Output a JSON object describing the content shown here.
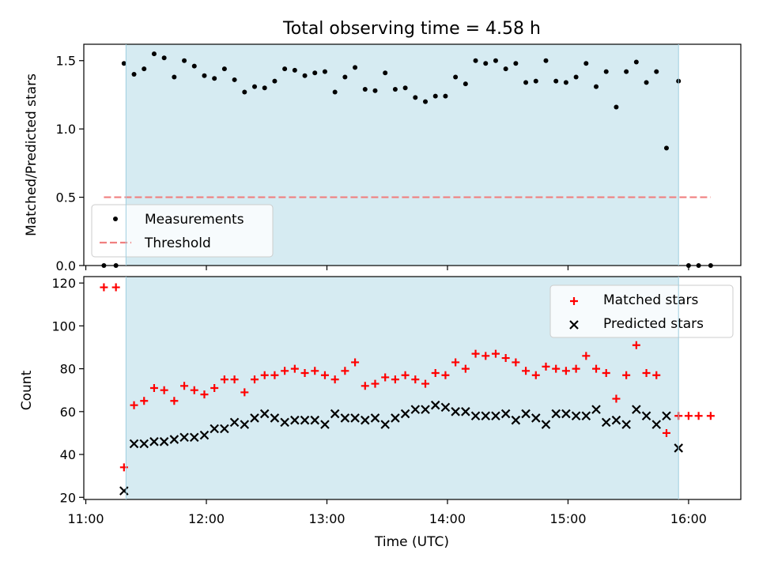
{
  "chart_data": [
    {
      "type": "scatter",
      "title": "Total observing time = 4.58 h",
      "ylabel": "Matched/Predicted stars",
      "xlabel": "",
      "ylim": [
        0,
        1.62
      ],
      "yticks": [
        "0.0",
        "0.5",
        "1.0",
        "1.5"
      ],
      "shaded_region": {
        "start": "11:20",
        "end": "15:55"
      },
      "series": [
        {
          "name": "Measurements",
          "marker": "dot",
          "color": "#000000",
          "x": [
            "11:09",
            "11:15",
            "11:19",
            "11:24",
            "11:29",
            "11:34",
            "11:39",
            "11:44",
            "11:49",
            "11:54",
            "11:59",
            "12:04",
            "12:09",
            "12:14",
            "12:19",
            "12:24",
            "12:29",
            "12:34",
            "12:39",
            "12:44",
            "12:49",
            "12:54",
            "12:59",
            "13:04",
            "13:09",
            "13:14",
            "13:19",
            "13:24",
            "13:29",
            "13:34",
            "13:39",
            "13:44",
            "13:49",
            "13:54",
            "13:59",
            "14:04",
            "14:09",
            "14:14",
            "14:19",
            "14:24",
            "14:29",
            "14:34",
            "14:39",
            "14:44",
            "14:49",
            "14:54",
            "14:59",
            "15:04",
            "15:09",
            "15:14",
            "15:19",
            "15:24",
            "15:29",
            "15:34",
            "15:39",
            "15:44",
            "15:49",
            "15:55",
            "16:00",
            "16:05",
            "16:11"
          ],
          "y": [
            0,
            0,
            1.48,
            1.4,
            1.44,
            1.55,
            1.52,
            1.38,
            1.5,
            1.46,
            1.39,
            1.37,
            1.44,
            1.36,
            1.27,
            1.31,
            1.3,
            1.35,
            1.44,
            1.43,
            1.39,
            1.41,
            1.42,
            1.27,
            1.38,
            1.45,
            1.29,
            1.28,
            1.41,
            1.29,
            1.3,
            1.23,
            1.2,
            1.24,
            1.24,
            1.38,
            1.33,
            1.5,
            1.48,
            1.5,
            1.44,
            1.48,
            1.34,
            1.35,
            1.5,
            1.35,
            1.34,
            1.38,
            1.48,
            1.31,
            1.42,
            1.16,
            1.42,
            1.49,
            1.34,
            1.42,
            0.86,
            1.35,
            0,
            0,
            0
          ]
        },
        {
          "name": "Threshold",
          "type": "line",
          "style": "dashed",
          "color": "#f08080",
          "x": [
            "11:09",
            "16:11"
          ],
          "y": [
            0.5,
            0.5
          ]
        }
      ],
      "legend_position": "lower-left"
    },
    {
      "type": "scatter",
      "title": "",
      "xlabel": "Time (UTC)",
      "ylabel": "Count",
      "ylim": [
        19,
        123
      ],
      "yticks": [
        "20",
        "40",
        "60",
        "80",
        "100",
        "120"
      ],
      "xlim": [
        "10:59",
        "16:26"
      ],
      "xticks": [
        "11:00",
        "12:00",
        "13:00",
        "14:00",
        "15:00",
        "16:00"
      ],
      "shaded_region": {
        "start": "11:20",
        "end": "15:55"
      },
      "series": [
        {
          "name": "Matched stars",
          "marker": "plus",
          "color": "#ff0000",
          "x": [
            "11:09",
            "11:15",
            "11:19",
            "11:24",
            "11:29",
            "11:34",
            "11:39",
            "11:44",
            "11:49",
            "11:54",
            "11:59",
            "12:04",
            "12:09",
            "12:14",
            "12:19",
            "12:24",
            "12:29",
            "12:34",
            "12:39",
            "12:44",
            "12:49",
            "12:54",
            "12:59",
            "13:04",
            "13:09",
            "13:14",
            "13:19",
            "13:24",
            "13:29",
            "13:34",
            "13:39",
            "13:44",
            "13:49",
            "13:54",
            "13:59",
            "14:04",
            "14:09",
            "14:14",
            "14:19",
            "14:24",
            "14:29",
            "14:34",
            "14:39",
            "14:44",
            "14:49",
            "14:54",
            "14:59",
            "15:04",
            "15:09",
            "15:14",
            "15:19",
            "15:24",
            "15:29",
            "15:34",
            "15:39",
            "15:44",
            "15:49",
            "15:55",
            "16:00",
            "16:05",
            "16:11"
          ],
          "y": [
            118,
            118,
            34,
            63,
            65,
            71,
            70,
            65,
            72,
            70,
            68,
            71,
            75,
            75,
            69,
            75,
            77,
            77,
            79,
            80,
            78,
            79,
            77,
            75,
            79,
            83,
            72,
            73,
            76,
            75,
            77,
            75,
            73,
            78,
            77,
            83,
            80,
            87,
            86,
            87,
            85,
            83,
            79,
            77,
            81,
            80,
            79,
            80,
            86,
            80,
            78,
            66,
            77,
            91,
            78,
            77,
            50,
            58,
            58,
            58,
            58
          ]
        },
        {
          "name": "Predicted stars",
          "marker": "x",
          "color": "#000000",
          "x": [
            "11:19",
            "11:24",
            "11:29",
            "11:34",
            "11:39",
            "11:44",
            "11:49",
            "11:54",
            "11:59",
            "12:04",
            "12:09",
            "12:14",
            "12:19",
            "12:24",
            "12:29",
            "12:34",
            "12:39",
            "12:44",
            "12:49",
            "12:54",
            "12:59",
            "13:04",
            "13:09",
            "13:14",
            "13:19",
            "13:24",
            "13:29",
            "13:34",
            "13:39",
            "13:44",
            "13:49",
            "13:54",
            "13:59",
            "14:04",
            "14:09",
            "14:14",
            "14:19",
            "14:24",
            "14:29",
            "14:34",
            "14:39",
            "14:44",
            "14:49",
            "14:54",
            "14:59",
            "15:04",
            "15:09",
            "15:14",
            "15:19",
            "15:24",
            "15:29",
            "15:34",
            "15:39",
            "15:44",
            "15:49",
            "15:55"
          ],
          "y": [
            23,
            45,
            45,
            46,
            46,
            47,
            48,
            48,
            49,
            52,
            52,
            55,
            54,
            57,
            59,
            57,
            55,
            56,
            56,
            56,
            54,
            59,
            57,
            57,
            56,
            57,
            54,
            57,
            59,
            61,
            61,
            63,
            62,
            60,
            60,
            58,
            58,
            58,
            59,
            56,
            59,
            57,
            54,
            59,
            59,
            58,
            58,
            61,
            55,
            56,
            54,
            61,
            58,
            54,
            58,
            43
          ]
        }
      ],
      "legend_position": "upper-right"
    }
  ]
}
